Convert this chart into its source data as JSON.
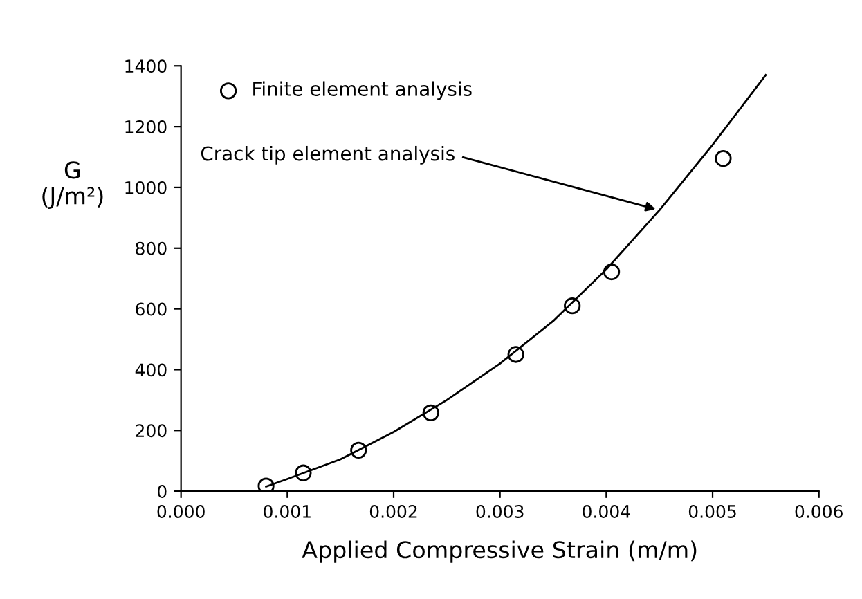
{
  "chart_data": {
    "type": "scatter",
    "xlabel": "Applied Compressive Strain (m/m)",
    "ylabel": "G\n(J/m²)",
    "xlim": [
      0,
      0.006
    ],
    "xticks": [
      {
        "value": 0,
        "label": "0.000"
      },
      0.001,
      0.002,
      0.003,
      0.004,
      0.005,
      0.006
    ],
    "ylim": [
      0,
      1400
    ],
    "yticks": [
      0,
      200,
      400,
      600,
      800,
      1000,
      1200,
      1400
    ],
    "grid": false,
    "legend": "top left",
    "series": [
      {
        "name": "Finite element analysis",
        "marker": "circle",
        "color": "#000000",
        "x": [
          0.0008,
          0.00115,
          0.00167,
          0.00235,
          0.00315,
          0.00368,
          0.00405,
          0.0051
        ],
        "values": [
          17,
          60,
          135,
          258,
          450,
          610,
          722,
          1095
        ]
      },
      {
        "type": "line",
        "color": "#000000",
        "line_style": "solid",
        "x": [
          0.0008,
          0.001,
          0.0015,
          0.002,
          0.0025,
          0.003,
          0.0035,
          0.004,
          0.0045,
          0.005,
          0.0055
        ],
        "values": [
          15,
          40,
          105,
          195,
          300,
          420,
          560,
          730,
          925,
          1140,
          1370
        ]
      }
    ],
    "annotations": [
      {
        "text": "Crack tip element analysis",
        "x": 0.0045,
        "y": 925
      }
    ]
  }
}
